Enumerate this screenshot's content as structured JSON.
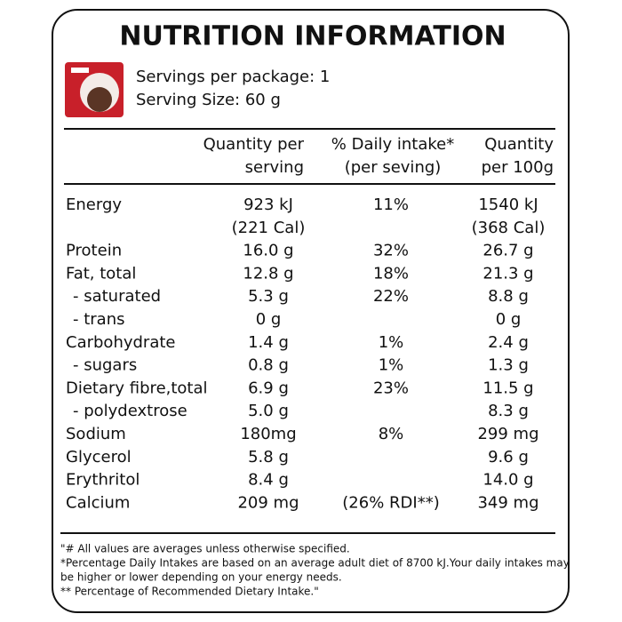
{
  "title": "NUTRITION INFORMATION",
  "servings": [
    "Servings per package: 1",
    "Serving Size: 60 g"
  ],
  "header": [
    [
      "Quantity per",
      "serving"
    ],
    [
      "% Daily  intake*",
      "(per seving)"
    ],
    [
      "Quantity",
      "per 100g"
    ]
  ],
  "rows": [
    [
      "Energy",
      "923 kJ",
      "11%",
      "1540 kJ"
    ],
    [
      null,
      "(221 Cal)",
      null,
      "(368 Cal)"
    ],
    [
      "Protein",
      "16.0 g",
      "32%",
      "26.7 g"
    ],
    [
      "Fat, total",
      "12.8 g",
      "18%",
      "21.3 g"
    ],
    [
      "- saturated",
      "5.3 g",
      "22%",
      "8.8 g"
    ],
    [
      "- trans",
      "0 g",
      null,
      "0 g"
    ],
    [
      "Carbohydrate",
      "1.4 g",
      "1%",
      "2.4 g"
    ],
    [
      "- sugars",
      "0.8 g",
      "1%",
      "1.3 g"
    ],
    [
      "Dietary fibre,total",
      "6.9 g",
      "23%",
      "11.5 g"
    ],
    [
      "- polydextrose",
      "5.0 g",
      null,
      "8.3 g"
    ],
    [
      "Sodium",
      "180mg",
      "8%",
      "299 mg"
    ],
    [
      "Glycerol",
      "5.8 g",
      null,
      "9.6 g"
    ],
    [
      "Erythritol",
      "8.4 g",
      null,
      "14.0 g"
    ],
    [
      "Calcium",
      "209 mg",
      "(26% RDI**)",
      "349 mg"
    ]
  ],
  "footnotes": [
    "\"# All values are averages unless otherwise specified.",
    "*Percentage Daily Intakes are based on an average adult diet of 8700 kJ.Your daily intakes may",
    "be higher or lower depending on your energy needs.",
    "** Percentage of Recommended Dietary Intake.\""
  ]
}
